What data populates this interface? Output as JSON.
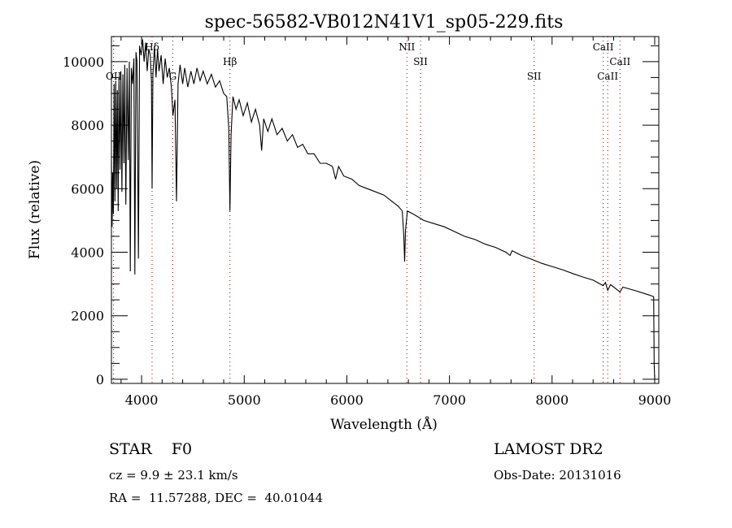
{
  "chart_data": {
    "type": "line",
    "title": "spec-56582-VB012N41V1_sp05-229.fits",
    "xlabel": "Wavelength (Å)",
    "ylabel": "Flux (relative)",
    "xlim": [
      3706,
      9040
    ],
    "ylim": [
      -130,
      10790
    ],
    "xticks": [
      4000,
      5000,
      6000,
      7000,
      8000,
      9000
    ],
    "yticks": [
      0,
      2000,
      4000,
      6000,
      8000,
      10000
    ],
    "grid": false,
    "line_color": "#000000",
    "marker_line_color": "#8b0000",
    "lines": [
      {
        "label": "OII",
        "wave": 3727,
        "row": 2
      },
      {
        "label": "Hδ",
        "wave": 4102,
        "row": 0
      },
      {
        "label": "G",
        "wave": 4304,
        "row": 2
      },
      {
        "label": "Hβ",
        "wave": 4861,
        "row": 1
      },
      {
        "label": "NII",
        "wave": 6585,
        "row": 0
      },
      {
        "label": "SII",
        "wave": 6718,
        "row": 1
      },
      {
        "label": "SII",
        "wave": 7825,
        "row": 2
      },
      {
        "label": "CaII",
        "wave": 8498,
        "row": 0
      },
      {
        "label": "CaII",
        "wave": 8542,
        "row": 2
      },
      {
        "label": "CaII",
        "wave": 8662,
        "row": 1
      }
    ],
    "spectrum": [
      [
        3706,
        6900
      ],
      [
        3712,
        4800
      ],
      [
        3718,
        6500
      ],
      [
        3725,
        5200
      ],
      [
        3732,
        9300
      ],
      [
        3740,
        5600
      ],
      [
        3748,
        9400
      ],
      [
        3756,
        6000
      ],
      [
        3764,
        9100
      ],
      [
        3772,
        5300
      ],
      [
        3780,
        9500
      ],
      [
        3790,
        6600
      ],
      [
        3798,
        9700
      ],
      [
        3808,
        5900
      ],
      [
        3818,
        9600
      ],
      [
        3828,
        6800
      ],
      [
        3836,
        9900
      ],
      [
        3846,
        5500
      ],
      [
        3858,
        9800
      ],
      [
        3870,
        6900
      ],
      [
        3880,
        10000
      ],
      [
        3890,
        3400
      ],
      [
        3900,
        9800
      ],
      [
        3912,
        9300
      ],
      [
        3925,
        10100
      ],
      [
        3934,
        3300
      ],
      [
        3945,
        10300
      ],
      [
        3955,
        10000
      ],
      [
        3969,
        3800
      ],
      [
        3980,
        10500
      ],
      [
        3995,
        10200
      ],
      [
        4010,
        10700
      ],
      [
        4025,
        10000
      ],
      [
        4040,
        10600
      ],
      [
        4055,
        9700
      ],
      [
        4070,
        10400
      ],
      [
        4085,
        10200
      ],
      [
        4096,
        9400
      ],
      [
        4102,
        6000
      ],
      [
        4110,
        9600
      ],
      [
        4125,
        10500
      ],
      [
        4140,
        9500
      ],
      [
        4155,
        10400
      ],
      [
        4170,
        9700
      ],
      [
        4190,
        10200
      ],
      [
        4210,
        9300
      ],
      [
        4230,
        10100
      ],
      [
        4250,
        9500
      ],
      [
        4270,
        9800
      ],
      [
        4290,
        9200
      ],
      [
        4305,
        8300
      ],
      [
        4325,
        8800
      ],
      [
        4340,
        5600
      ],
      [
        4355,
        9300
      ],
      [
        4375,
        9900
      ],
      [
        4400,
        9300
      ],
      [
        4420,
        9800
      ],
      [
        4450,
        9200
      ],
      [
        4480,
        9700
      ],
      [
        4510,
        9300
      ],
      [
        4540,
        9800
      ],
      [
        4570,
        9400
      ],
      [
        4600,
        9700
      ],
      [
        4640,
        9300
      ],
      [
        4680,
        9600
      ],
      [
        4720,
        9200
      ],
      [
        4760,
        9400
      ],
      [
        4800,
        9000
      ],
      [
        4830,
        8900
      ],
      [
        4850,
        7900
      ],
      [
        4861,
        5300
      ],
      [
        4872,
        7700
      ],
      [
        4890,
        8900
      ],
      [
        4920,
        8500
      ],
      [
        4950,
        8800
      ],
      [
        4990,
        8300
      ],
      [
        5030,
        8700
      ],
      [
        5070,
        8100
      ],
      [
        5110,
        8500
      ],
      [
        5150,
        8000
      ],
      [
        5170,
        7200
      ],
      [
        5190,
        8200
      ],
      [
        5230,
        7800
      ],
      [
        5270,
        8200
      ],
      [
        5320,
        7700
      ],
      [
        5370,
        7900
      ],
      [
        5420,
        7500
      ],
      [
        5470,
        7700
      ],
      [
        5520,
        7300
      ],
      [
        5570,
        7400
      ],
      [
        5620,
        7100
      ],
      [
        5680,
        7100
      ],
      [
        5740,
        6800
      ],
      [
        5800,
        6800
      ],
      [
        5860,
        6700
      ],
      [
        5890,
        6300
      ],
      [
        5920,
        6700
      ],
      [
        5970,
        6400
      ],
      [
        6050,
        6300
      ],
      [
        6120,
        6100
      ],
      [
        6200,
        6000
      ],
      [
        6280,
        5900
      ],
      [
        6360,
        5800
      ],
      [
        6440,
        5600
      ],
      [
        6500,
        5450
      ],
      [
        6540,
        5300
      ],
      [
        6555,
        4500
      ],
      [
        6563,
        3700
      ],
      [
        6572,
        4700
      ],
      [
        6590,
        5300
      ],
      [
        6650,
        5200
      ],
      [
        6750,
        5000
      ],
      [
        6850,
        4900
      ],
      [
        6950,
        4800
      ],
      [
        7050,
        4650
      ],
      [
        7150,
        4500
      ],
      [
        7250,
        4400
      ],
      [
        7350,
        4250
      ],
      [
        7450,
        4150
      ],
      [
        7550,
        4000
      ],
      [
        7590,
        3900
      ],
      [
        7610,
        4050
      ],
      [
        7700,
        3900
      ],
      [
        7800,
        3780
      ],
      [
        7900,
        3650
      ],
      [
        8000,
        3550
      ],
      [
        8100,
        3450
      ],
      [
        8200,
        3330
      ],
      [
        8300,
        3220
      ],
      [
        8400,
        3120
      ],
      [
        8498,
        2950
      ],
      [
        8520,
        3050
      ],
      [
        8542,
        2800
      ],
      [
        8570,
        2980
      ],
      [
        8662,
        2750
      ],
      [
        8690,
        2900
      ],
      [
        8800,
        2800
      ],
      [
        8900,
        2700
      ],
      [
        8950,
        2650
      ],
      [
        8990,
        2600
      ],
      [
        8995,
        500
      ],
      [
        9000,
        0
      ]
    ]
  },
  "info": {
    "class": "STAR    F0",
    "survey": "LAMOST DR2",
    "cz": "cz = 9.9 ± 23.1 km/s",
    "obs_date": "Obs-Date: 20131016",
    "coords": "RA =  11.57288, DEC =  40.01044"
  }
}
